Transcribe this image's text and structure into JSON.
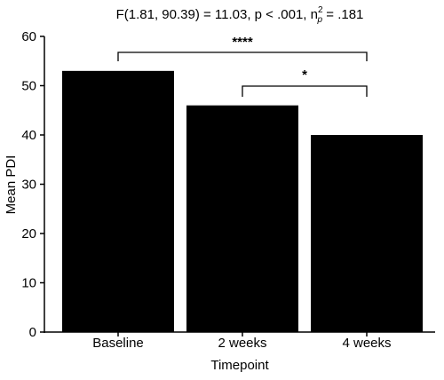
{
  "chart_data": {
    "type": "bar",
    "title": {
      "prefix": "F(1.81, 90.39) = 11.03, p < .001, n",
      "superscript": "2",
      "subscript": "p",
      "suffix": " = .181"
    },
    "xlabel": "Timepoint",
    "ylabel": "Mean PDI",
    "categories": [
      "Baseline",
      "2 weeks",
      "4 weeks"
    ],
    "values": [
      53,
      46,
      40
    ],
    "ylim": [
      0,
      60
    ],
    "yticks": [
      0,
      10,
      20,
      30,
      40,
      50,
      60
    ],
    "bar_color": "#000000",
    "grid": false,
    "comparisons": [
      {
        "from": 0,
        "to": 2,
        "label": "****"
      },
      {
        "from": 1,
        "to": 2,
        "label": "*"
      }
    ]
  }
}
